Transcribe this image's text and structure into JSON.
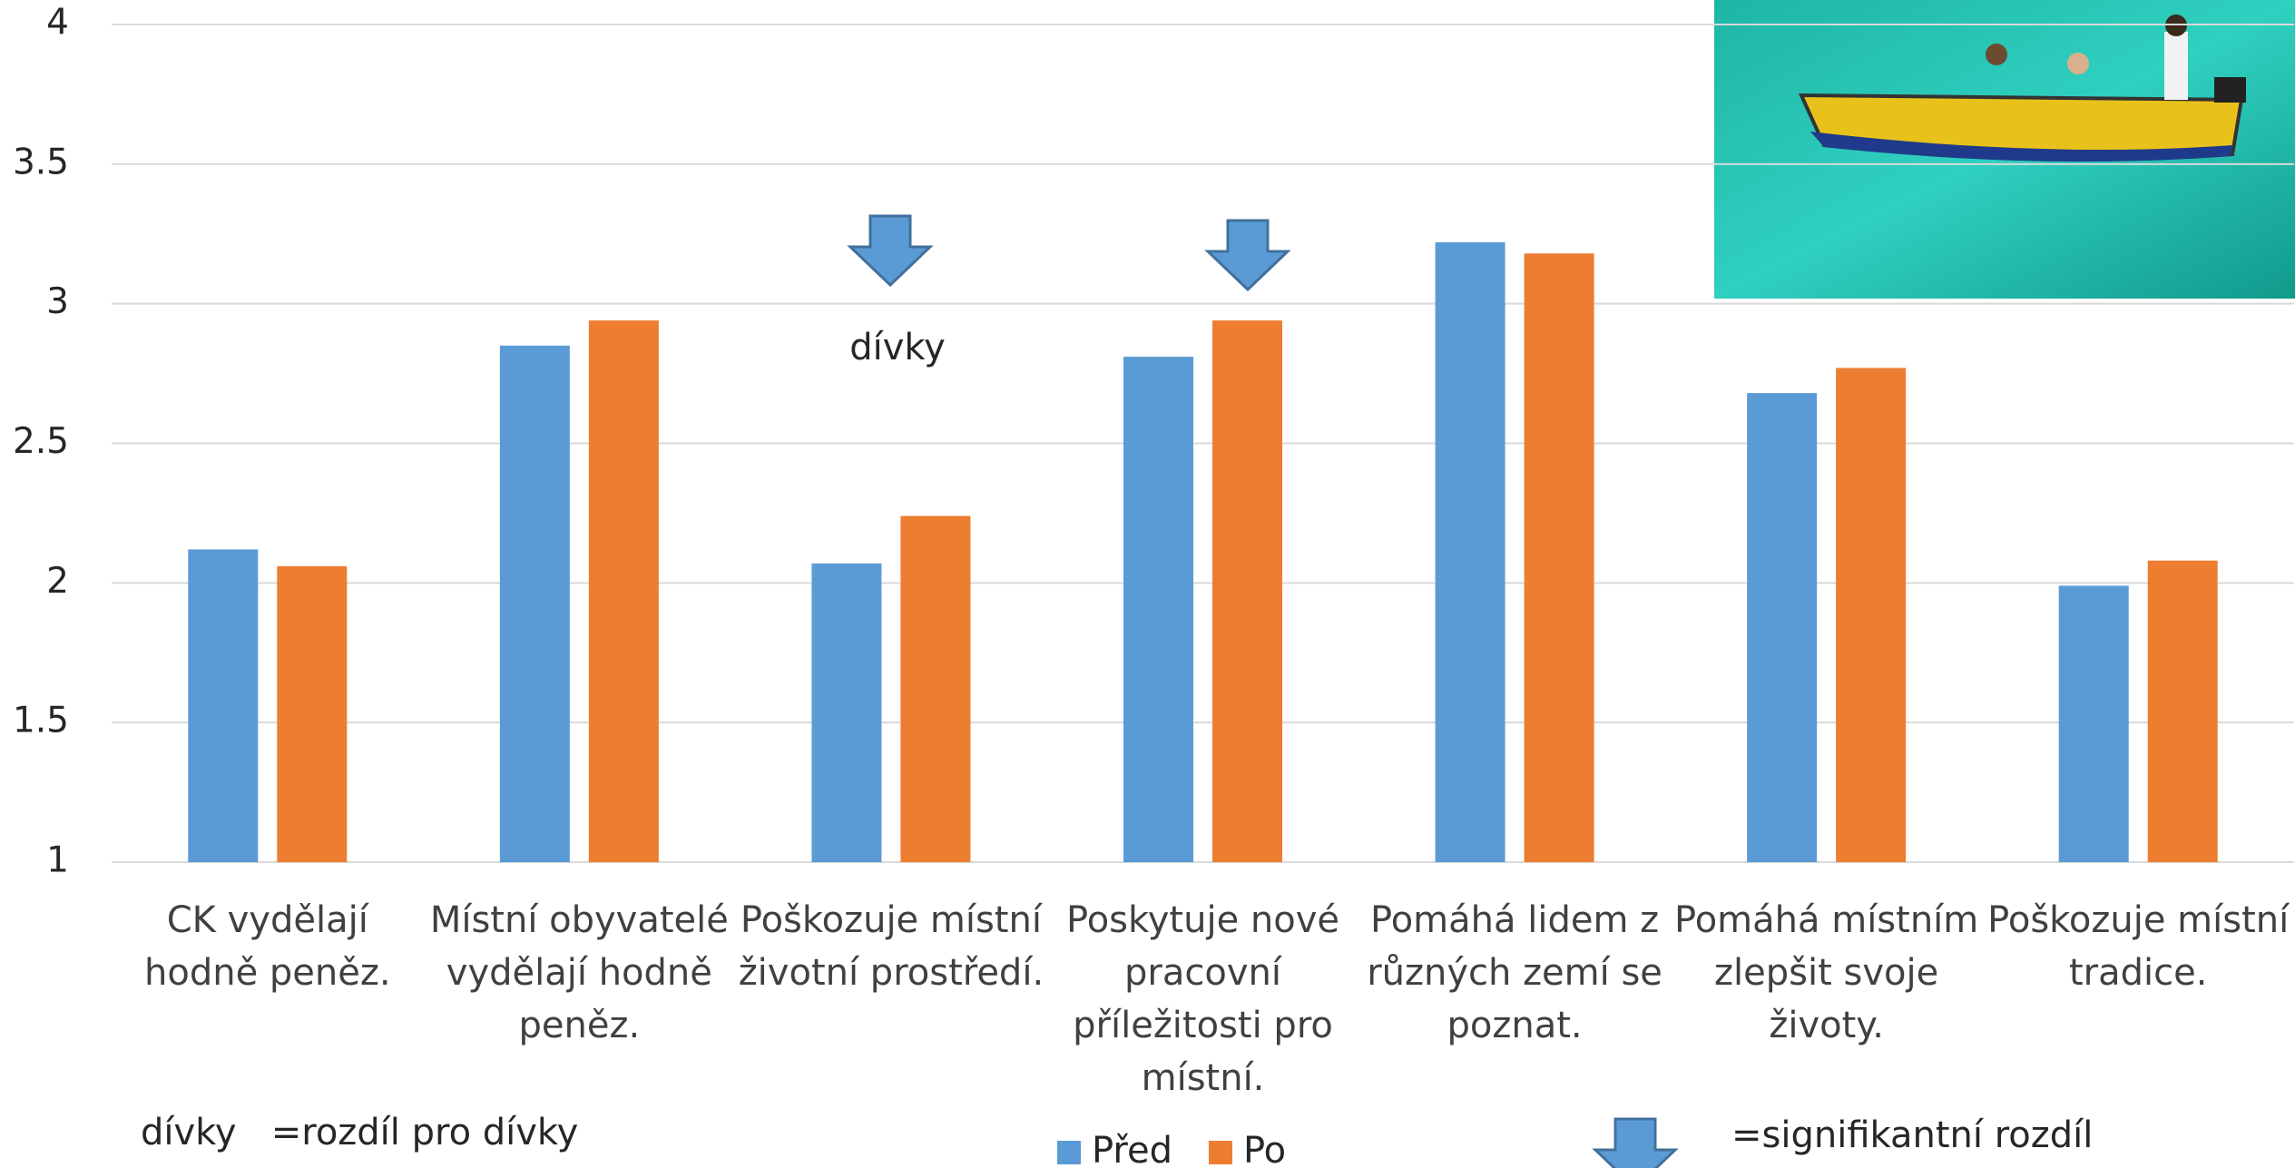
{
  "chart_data": {
    "type": "bar",
    "categories": [
      "CK vydělají hodně peněz.",
      "Místní obyvatelé vydělají hodně peněz.",
      "Poškozuje místní životní prostředí.",
      "Poskytuje nové pracovní příležitosti pro místní.",
      "Pomáhá lidem z různých zemí se poznat.",
      "Pomáhá místním zlepšit svoje životy.",
      "Poškozuje místní tradice."
    ],
    "series": [
      {
        "name": "Před",
        "color": "#5b9bd5",
        "values": [
          2.12,
          2.85,
          2.07,
          2.81,
          3.22,
          2.68,
          1.99
        ]
      },
      {
        "name": "Po",
        "color": "#ed7d31",
        "values": [
          2.06,
          2.94,
          2.24,
          2.94,
          3.18,
          2.77,
          2.08
        ]
      }
    ],
    "ylim": [
      1,
      4
    ],
    "yticks": [
      1,
      1.5,
      2,
      2.5,
      3,
      3.5,
      4
    ],
    "grid": true,
    "legend": "bottom",
    "annotations": {
      "arrow_label": "dívky",
      "note": "dívky   =rozdíl pro dívky",
      "arrow_note": "=signifikantní rozdíl"
    }
  }
}
